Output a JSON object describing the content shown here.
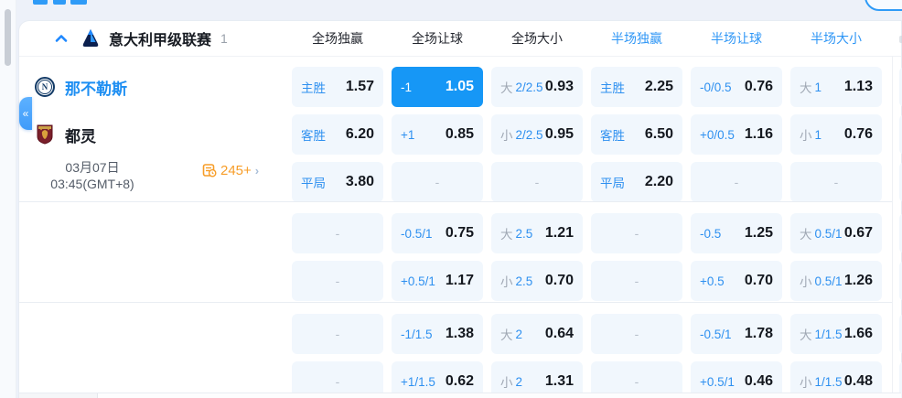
{
  "league": {
    "title": "意大利甲级联赛",
    "count": "1"
  },
  "columns": [
    {
      "label": "全场独赢",
      "half": false
    },
    {
      "label": "全场让球",
      "half": false
    },
    {
      "label": "全场大小",
      "half": false
    },
    {
      "label": "半场独赢",
      "half": true
    },
    {
      "label": "半场让球",
      "half": true
    },
    {
      "label": "半场大小",
      "half": true
    }
  ],
  "match": {
    "home_name": "那不勒斯",
    "away_name": "都灵",
    "date_line1": "03月07日",
    "date_line2": "03:45(GMT+8)",
    "more_markets": "245+",
    "more_chevron": "›"
  },
  "odds": {
    "dash": "-",
    "groups": [
      {
        "rows": [
          [
            {
              "label": "主胜",
              "value": "1.57"
            },
            {
              "label": "-1",
              "value": "1.05",
              "selected": true
            },
            {
              "muted": "大",
              "line": "2/2.5",
              "value": "0.93"
            },
            {
              "label": "主胜",
              "value": "2.25"
            },
            {
              "label": "-0/0.5",
              "value": "0.76"
            },
            {
              "muted": "大",
              "line": "1",
              "value": "1.13"
            }
          ],
          [
            {
              "label": "客胜",
              "value": "6.20"
            },
            {
              "label": "+1",
              "value": "0.85"
            },
            {
              "muted": "小",
              "line": "2/2.5",
              "value": "0.95"
            },
            {
              "label": "客胜",
              "value": "6.50"
            },
            {
              "label": "+0/0.5",
              "value": "1.16"
            },
            {
              "muted": "小",
              "line": "1",
              "value": "0.76"
            }
          ],
          [
            {
              "label": "平局",
              "value": "3.80"
            },
            {
              "empty": true
            },
            {
              "empty": true
            },
            {
              "label": "平局",
              "value": "2.20"
            },
            {
              "empty": true
            },
            {
              "empty": true
            }
          ]
        ]
      },
      {
        "rows": [
          [
            {
              "empty": true
            },
            {
              "label": "-0.5/1",
              "value": "0.75"
            },
            {
              "muted": "大",
              "line": "2.5",
              "value": "1.21"
            },
            {
              "empty": true
            },
            {
              "label": "-0.5",
              "value": "1.25"
            },
            {
              "muted": "大",
              "line": "0.5/1",
              "value": "0.67"
            }
          ],
          [
            {
              "empty": true
            },
            {
              "label": "+0.5/1",
              "value": "1.17"
            },
            {
              "muted": "小",
              "line": "2.5",
              "value": "0.70"
            },
            {
              "empty": true
            },
            {
              "label": "+0.5",
              "value": "0.70"
            },
            {
              "muted": "小",
              "line": "0.5/1",
              "value": "1.26"
            }
          ]
        ]
      },
      {
        "rows": [
          [
            {
              "empty": true
            },
            {
              "label": "-1/1.5",
              "value": "1.38"
            },
            {
              "muted": "大",
              "line": "2",
              "value": "0.64"
            },
            {
              "empty": true
            },
            {
              "label": "-0.5/1",
              "value": "1.78"
            },
            {
              "muted": "大",
              "line": "1/1.5",
              "value": "1.66"
            }
          ],
          [
            {
              "empty": true
            },
            {
              "label": "+1/1.5",
              "value": "0.62"
            },
            {
              "muted": "小",
              "line": "2",
              "value": "1.31"
            },
            {
              "empty": true
            },
            {
              "label": "+0.5/1",
              "value": "0.46"
            },
            {
              "muted": "小",
              "line": "1/1.5",
              "value": "0.48"
            }
          ]
        ]
      }
    ]
  },
  "colors": {
    "accent_blue": "#2e96f6",
    "selected_cell": "#1697f6",
    "cell_bg": "#f1f7fd",
    "orange": "#f79d28",
    "home_team_blue": "#1d8ef2"
  },
  "glyphs": {
    "collapse_tab": "«"
  }
}
